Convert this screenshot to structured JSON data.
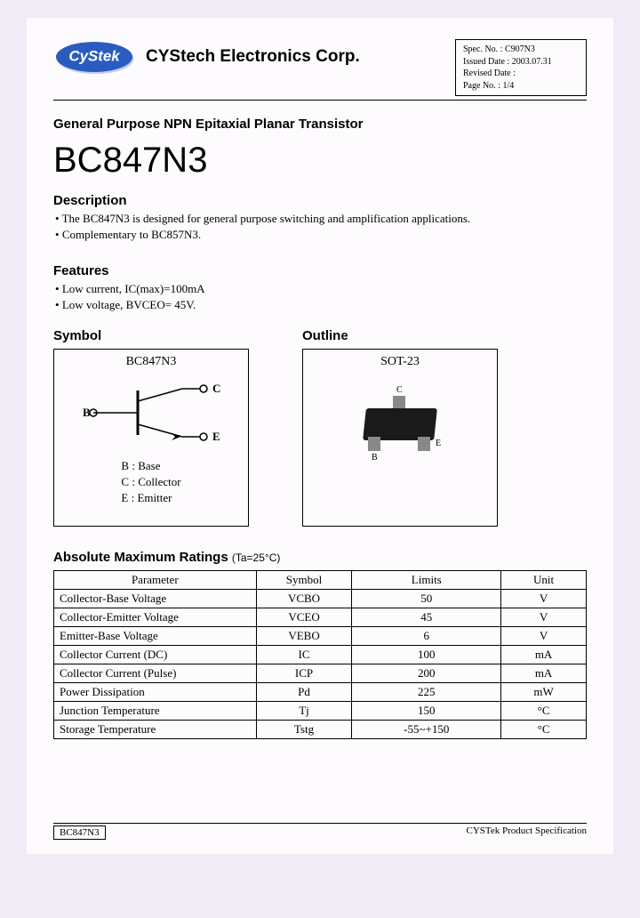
{
  "header": {
    "company": "CYStech Electronics Corp.",
    "spec": {
      "spec_no_label": "Spec. No. :",
      "spec_no": "C907N3",
      "issued_label": "Issued Date :",
      "issued": "2003.07.31",
      "revised_label": "Revised Date :",
      "revised": "",
      "page_label": "Page No. :",
      "page": "1/4"
    }
  },
  "title_line": "General Purpose NPN Epitaxial Planar Transistor",
  "part_number": "BC847N3",
  "description": {
    "heading": "Description",
    "items": [
      "The BC847N3 is designed for general purpose switching and amplification applications.",
      "Complementary to BC857N3."
    ]
  },
  "features": {
    "heading": "Features",
    "items": [
      "Low current, IC(max)=100mA",
      "Low voltage, BVCEO= 45V."
    ]
  },
  "symbol": {
    "heading": "Symbol",
    "label": "BC847N3",
    "pins": {
      "b": "B : Base",
      "c": "C : Collector",
      "e": "E : Emitter"
    },
    "terminals": {
      "b": "B",
      "c": "C",
      "e": "E"
    }
  },
  "outline": {
    "heading": "Outline",
    "label": "SOT-23",
    "pin_labels": {
      "b": "B",
      "c": "C",
      "e": "E"
    }
  },
  "amr": {
    "heading": "Absolute Maximum Ratings",
    "condition": "(Ta=25°C)",
    "columns": [
      "Parameter",
      "Symbol",
      "Limits",
      "Unit"
    ],
    "rows": [
      [
        "Collector-Base Voltage",
        "VCBO",
        "50",
        "V"
      ],
      [
        "Collector-Emitter Voltage",
        "VCEO",
        "45",
        "V"
      ],
      [
        "Emitter-Base Voltage",
        "VEBO",
        "6",
        "V"
      ],
      [
        "Collector Current (DC)",
        "IC",
        "100",
        "mA"
      ],
      [
        "Collector Current (Pulse)",
        "ICP",
        "200",
        "mA"
      ],
      [
        "Power Dissipation",
        "Pd",
        "225",
        "mW"
      ],
      [
        "Junction Temperature",
        "Tj",
        "150",
        "°C"
      ],
      [
        "Storage Temperature",
        "Tstg",
        "-55~+150",
        "°C"
      ]
    ],
    "col_widths": [
      "38%",
      "18%",
      "28%",
      "16%"
    ]
  },
  "footer": {
    "left": "BC847N3",
    "right": "CYSTek Product Specification"
  },
  "colors": {
    "page_bg": "#fdfbfd",
    "body_bg": "#f0ebf5",
    "logo_blue": "#2a5bbf",
    "logo_shadow": "#6b8fd6",
    "border": "#000000"
  }
}
